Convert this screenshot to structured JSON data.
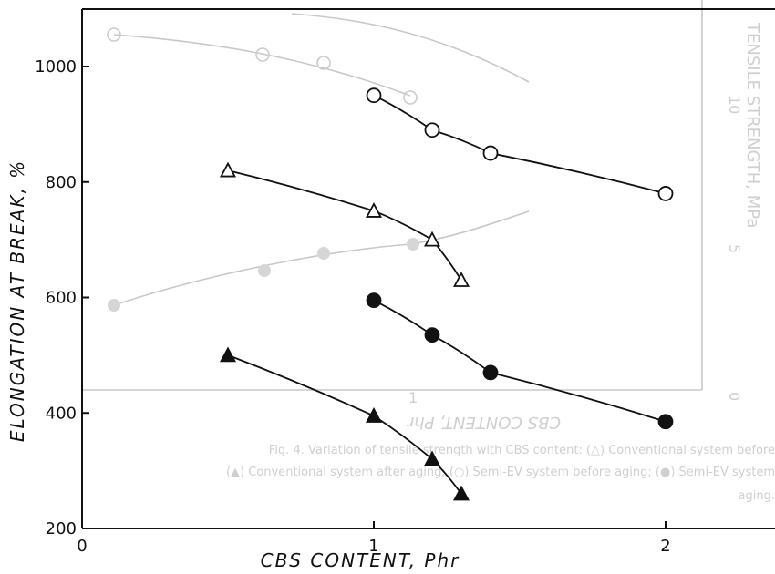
{
  "chart_data": {
    "type": "line",
    "title": "",
    "xlabel": "CBS CONTENT, Phr",
    "ylabel": "ELONGATION AT BREAK, %",
    "xlim": [
      0,
      2.2
    ],
    "ylim": [
      200,
      1100
    ],
    "xticks": [
      0,
      1,
      2
    ],
    "yticks": [
      200,
      400,
      600,
      800,
      1000
    ],
    "grid": false,
    "legend": "none",
    "series": [
      {
        "marker": "open-circle",
        "x": [
          1.0,
          1.2,
          1.4,
          2.0
        ],
        "y": [
          950,
          890,
          850,
          780
        ]
      },
      {
        "marker": "open-triangle",
        "x": [
          0.5,
          1.0,
          1.2,
          1.3
        ],
        "y": [
          820,
          750,
          700,
          630
        ]
      },
      {
        "marker": "filled-circle",
        "x": [
          1.0,
          1.2,
          1.4,
          2.0
        ],
        "y": [
          595,
          535,
          470,
          385
        ]
      },
      {
        "marker": "filled-triangle",
        "x": [
          0.5,
          1.0,
          1.2,
          1.3
        ],
        "y": [
          500,
          395,
          320,
          260
        ]
      }
    ],
    "background_bleed": {
      "color": "#cccccc",
      "right_axis_label": "TENSILE STRENGTH, MPa",
      "right_ticks": [
        "0",
        "5",
        "10"
      ],
      "bottom_axis_label": "CBS CONTENT, Phr",
      "bottom_ticks": [
        "1"
      ],
      "caption_lines": [
        "Fig. 4.   Variation of tensile strength with CBS content: (△) Conventional system before",
        "(▲) Conventional system after aging; (○) Semi-EV system before aging; (●) Semi-EV system",
        "aging."
      ]
    }
  }
}
